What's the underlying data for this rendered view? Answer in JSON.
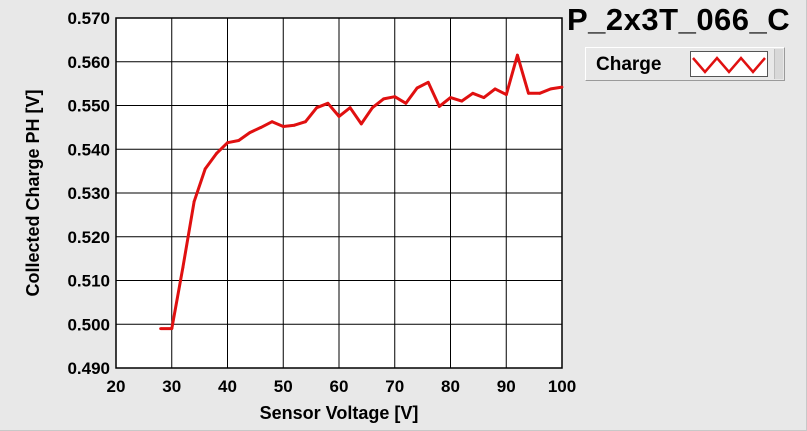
{
  "chart_data": {
    "type": "line",
    "title": "P_2x3T_066_C",
    "xlabel": "Sensor Voltage [V]",
    "ylabel": "Collected Charge PH [V]",
    "xlim": [
      20,
      100
    ],
    "ylim": [
      0.49,
      0.57
    ],
    "x_ticks": [
      "20",
      "30",
      "40",
      "50",
      "60",
      "70",
      "80",
      "90",
      "100"
    ],
    "y_ticks": [
      "0.490",
      "0.500",
      "0.510",
      "0.520",
      "0.530",
      "0.540",
      "0.550",
      "0.560",
      "0.570"
    ],
    "grid": true,
    "legend_position": "top-right",
    "series": [
      {
        "name": "Charge",
        "color": "#e01010",
        "x": [
          28,
          30,
          32,
          34,
          36,
          38,
          40,
          42,
          44,
          46,
          48,
          50,
          52,
          54,
          56,
          58,
          60,
          62,
          64,
          66,
          68,
          70,
          72,
          74,
          76,
          78,
          80,
          82,
          84,
          86,
          88,
          90,
          92,
          94,
          96,
          98,
          100
        ],
        "y": [
          0.499,
          0.499,
          0.513,
          0.528,
          0.5355,
          0.539,
          0.5415,
          0.542,
          0.5438,
          0.545,
          0.5463,
          0.5452,
          0.5455,
          0.5463,
          0.5495,
          0.5505,
          0.5475,
          0.5495,
          0.5458,
          0.5495,
          0.5515,
          0.552,
          0.5505,
          0.554,
          0.5553,
          0.5498,
          0.5518,
          0.551,
          0.5528,
          0.5518,
          0.5538,
          0.5525,
          0.5615,
          0.5528,
          0.5528,
          0.5538,
          0.5542
        ]
      }
    ]
  }
}
